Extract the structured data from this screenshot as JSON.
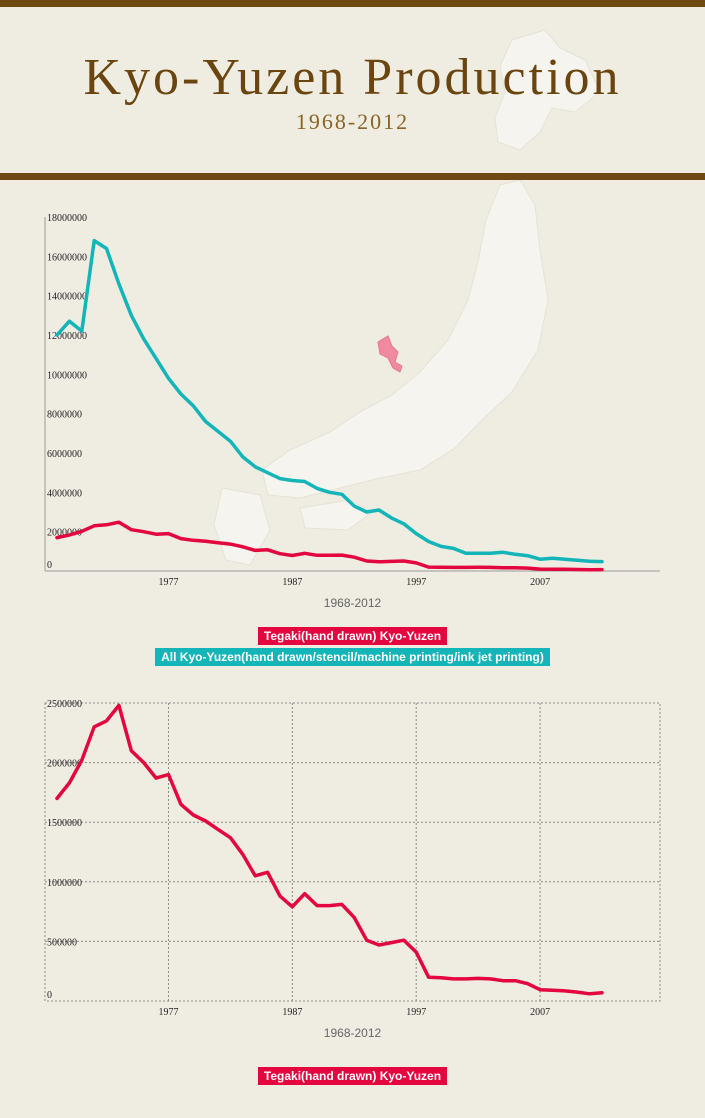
{
  "header": {
    "title": "Kyo-Yuzen Production",
    "subtitle": "1968-2012"
  },
  "colors": {
    "brown": "#6e4a12",
    "tegaki": "#e4063f",
    "all": "#13b5b8",
    "kyoto_region": "#f08aa0"
  },
  "chart_data": [
    {
      "type": "line",
      "xlabel": "1968-2012",
      "x": [
        1968,
        1969,
        1970,
        1971,
        1972,
        1973,
        1974,
        1975,
        1976,
        1977,
        1978,
        1979,
        1980,
        1981,
        1982,
        1983,
        1984,
        1985,
        1986,
        1987,
        1988,
        1989,
        1990,
        1991,
        1992,
        1993,
        1994,
        1995,
        1996,
        1997,
        1998,
        1999,
        2000,
        2001,
        2002,
        2003,
        2004,
        2005,
        2006,
        2007,
        2008,
        2009,
        2010,
        2011,
        2012
      ],
      "xticks": [
        "1977",
        "1987",
        "1997",
        "2007"
      ],
      "xtick_values": [
        1977,
        1987,
        1997,
        2007
      ],
      "yticks": [
        "0",
        "2000000",
        "4000000",
        "6000000",
        "8000000",
        "10000000",
        "12000000",
        "14000000",
        "16000000",
        "18000000"
      ],
      "ylim": [
        0,
        18000000
      ],
      "series": [
        {
          "name": "Tegaki(hand drawn) Kyo-Yuzen",
          "color": "#e4063f",
          "values": [
            1700000,
            1830000,
            2020000,
            2300000,
            2350000,
            2480000,
            2100000,
            2000000,
            1870000,
            1900000,
            1650000,
            1560000,
            1510000,
            1440000,
            1370000,
            1230000,
            1050000,
            1080000,
            880000,
            790000,
            900000,
            800000,
            800000,
            810000,
            700000,
            510000,
            470000,
            490000,
            510000,
            410000,
            200000,
            195000,
            185000,
            185000,
            190000,
            185000,
            170000,
            170000,
            145000,
            95000,
            90000,
            85000,
            75000,
            60000,
            70000
          ]
        },
        {
          "name": "All Kyo-Yuzen(hand drawn/stencil/machine printing/ink jet printing)",
          "color": "#13b5b8",
          "values": [
            12000000,
            12700000,
            12200000,
            16800000,
            16400000,
            14600000,
            13000000,
            11800000,
            10800000,
            9800000,
            9000000,
            8400000,
            7600000,
            7100000,
            6600000,
            5800000,
            5300000,
            5000000,
            4700000,
            4600000,
            4550000,
            4200000,
            4000000,
            3900000,
            3300000,
            3000000,
            3100000,
            2700000,
            2400000,
            1900000,
            1500000,
            1250000,
            1150000,
            900000,
            900000,
            900000,
            950000,
            850000,
            780000,
            600000,
            650000,
            600000,
            550000,
            500000,
            480000
          ]
        }
      ],
      "legend": [
        {
          "label": "Tegaki(hand drawn) Kyo-Yuzen",
          "color": "#e4063f"
        },
        {
          "label": "All Kyo-Yuzen(hand drawn/stencil/machine printing/ink jet printing)",
          "color": "#13b5b8"
        }
      ],
      "grid": false
    },
    {
      "type": "line",
      "xlabel": "1968-2012",
      "x": [
        1968,
        1969,
        1970,
        1971,
        1972,
        1973,
        1974,
        1975,
        1976,
        1977,
        1978,
        1979,
        1980,
        1981,
        1982,
        1983,
        1984,
        1985,
        1986,
        1987,
        1988,
        1989,
        1990,
        1991,
        1992,
        1993,
        1994,
        1995,
        1996,
        1997,
        1998,
        1999,
        2000,
        2001,
        2002,
        2003,
        2004,
        2005,
        2006,
        2007,
        2008,
        2009,
        2010,
        2011,
        2012
      ],
      "xticks": [
        "1977",
        "1987",
        "1997",
        "2007"
      ],
      "xtick_values": [
        1977,
        1987,
        1997,
        2007
      ],
      "yticks": [
        "0",
        "500000",
        "1000000",
        "1500000",
        "2000000",
        "2500000"
      ],
      "ylim": [
        0,
        2500000
      ],
      "series": [
        {
          "name": "Tegaki(hand drawn) Kyo-Yuzen",
          "color": "#e4063f",
          "values": [
            1700000,
            1830000,
            2020000,
            2300000,
            2350000,
            2480000,
            2100000,
            2000000,
            1870000,
            1900000,
            1650000,
            1560000,
            1510000,
            1440000,
            1370000,
            1230000,
            1050000,
            1080000,
            880000,
            790000,
            900000,
            800000,
            800000,
            810000,
            700000,
            510000,
            470000,
            490000,
            510000,
            410000,
            200000,
            195000,
            185000,
            185000,
            190000,
            185000,
            170000,
            170000,
            145000,
            95000,
            90000,
            85000,
            75000,
            60000,
            70000
          ]
        }
      ],
      "legend": [
        {
          "label": "Tegaki(hand drawn) Kyo-Yuzen",
          "color": "#e4063f"
        }
      ],
      "grid": true
    }
  ]
}
